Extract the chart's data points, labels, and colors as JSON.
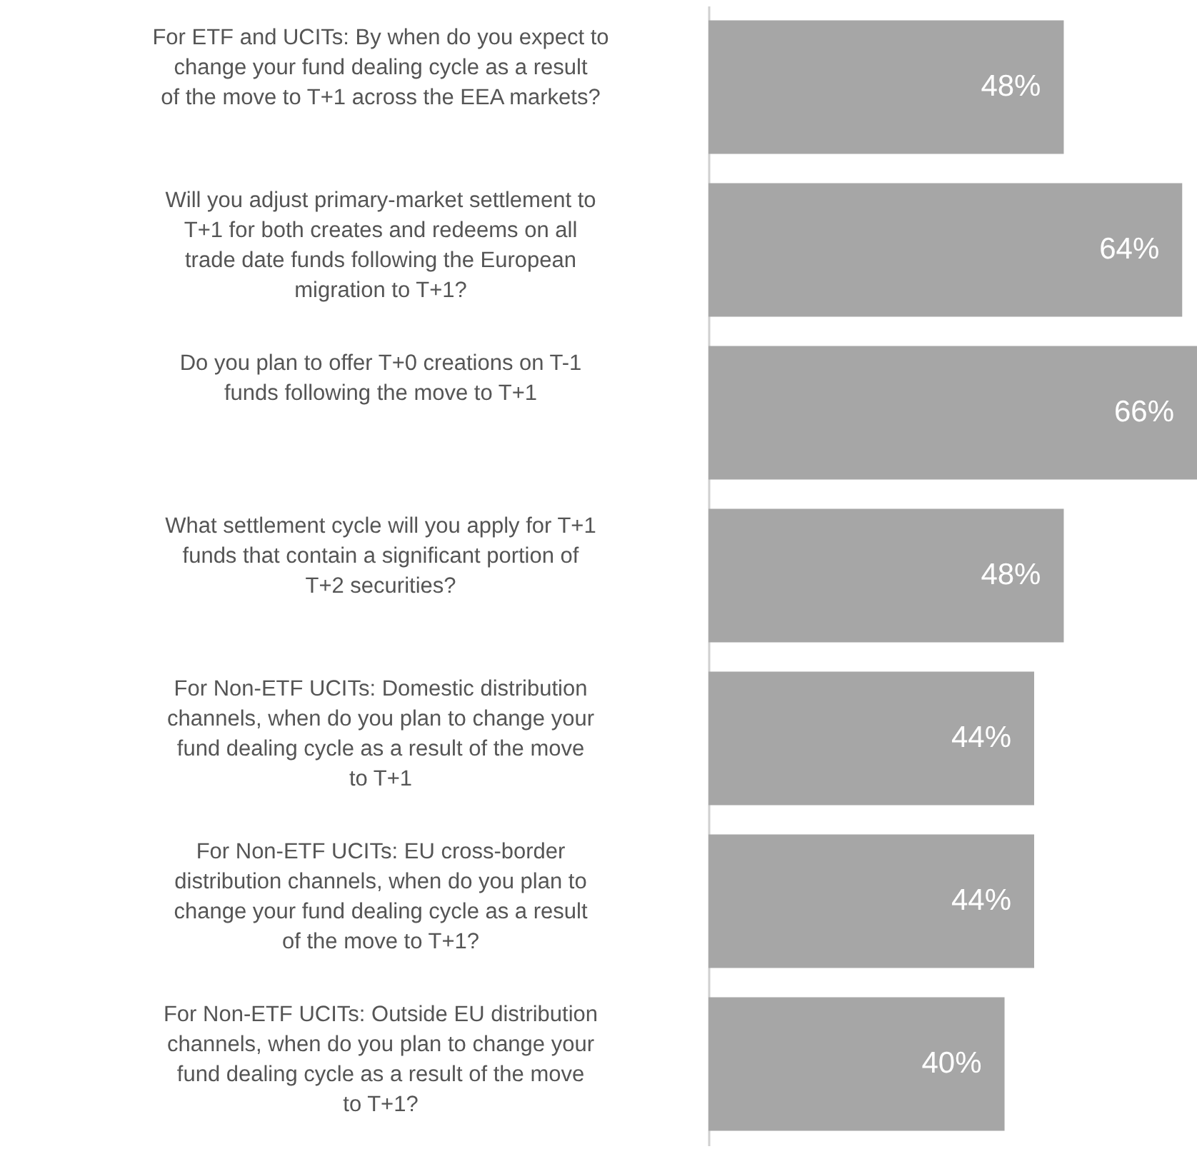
{
  "chart_data": {
    "type": "bar",
    "orientation": "horizontal",
    "categories": [
      "For ETF and UCITs: By when do you expect to change your fund dealing cycle as a result of the move to T+1 across the EEA markets?",
      "Will you adjust primary-market settlement to T+1 for both creates and redeems on all trade date funds following the European migration to T+1?",
      "Do you plan to offer T+0 creations on T-1 funds following the move to T+1",
      "What settlement cycle will you apply for T+1 funds that contain a significant portion of T+2 securities?",
      "For Non-ETF UCITs: Domestic distribution channels, when do you plan to change your fund dealing cycle as a result of the move to T+1",
      "For Non-ETF UCITs: EU cross-border distribution channels, when do you plan to change your fund dealing cycle as a result of the move to T+1?",
      "For Non-ETF UCITs: Outside EU distribution channels, when do you plan to change your fund dealing cycle as a result of the move to T+1?"
    ],
    "values": [
      48,
      64,
      66,
      48,
      44,
      44,
      40
    ],
    "value_labels": [
      "48%",
      "64%",
      "66%",
      "48%",
      "44%",
      "44%",
      "40%"
    ],
    "color": "#a6a6a6",
    "xlim": [
      0,
      66
    ],
    "tick_labels": "y",
    "grid": false
  }
}
